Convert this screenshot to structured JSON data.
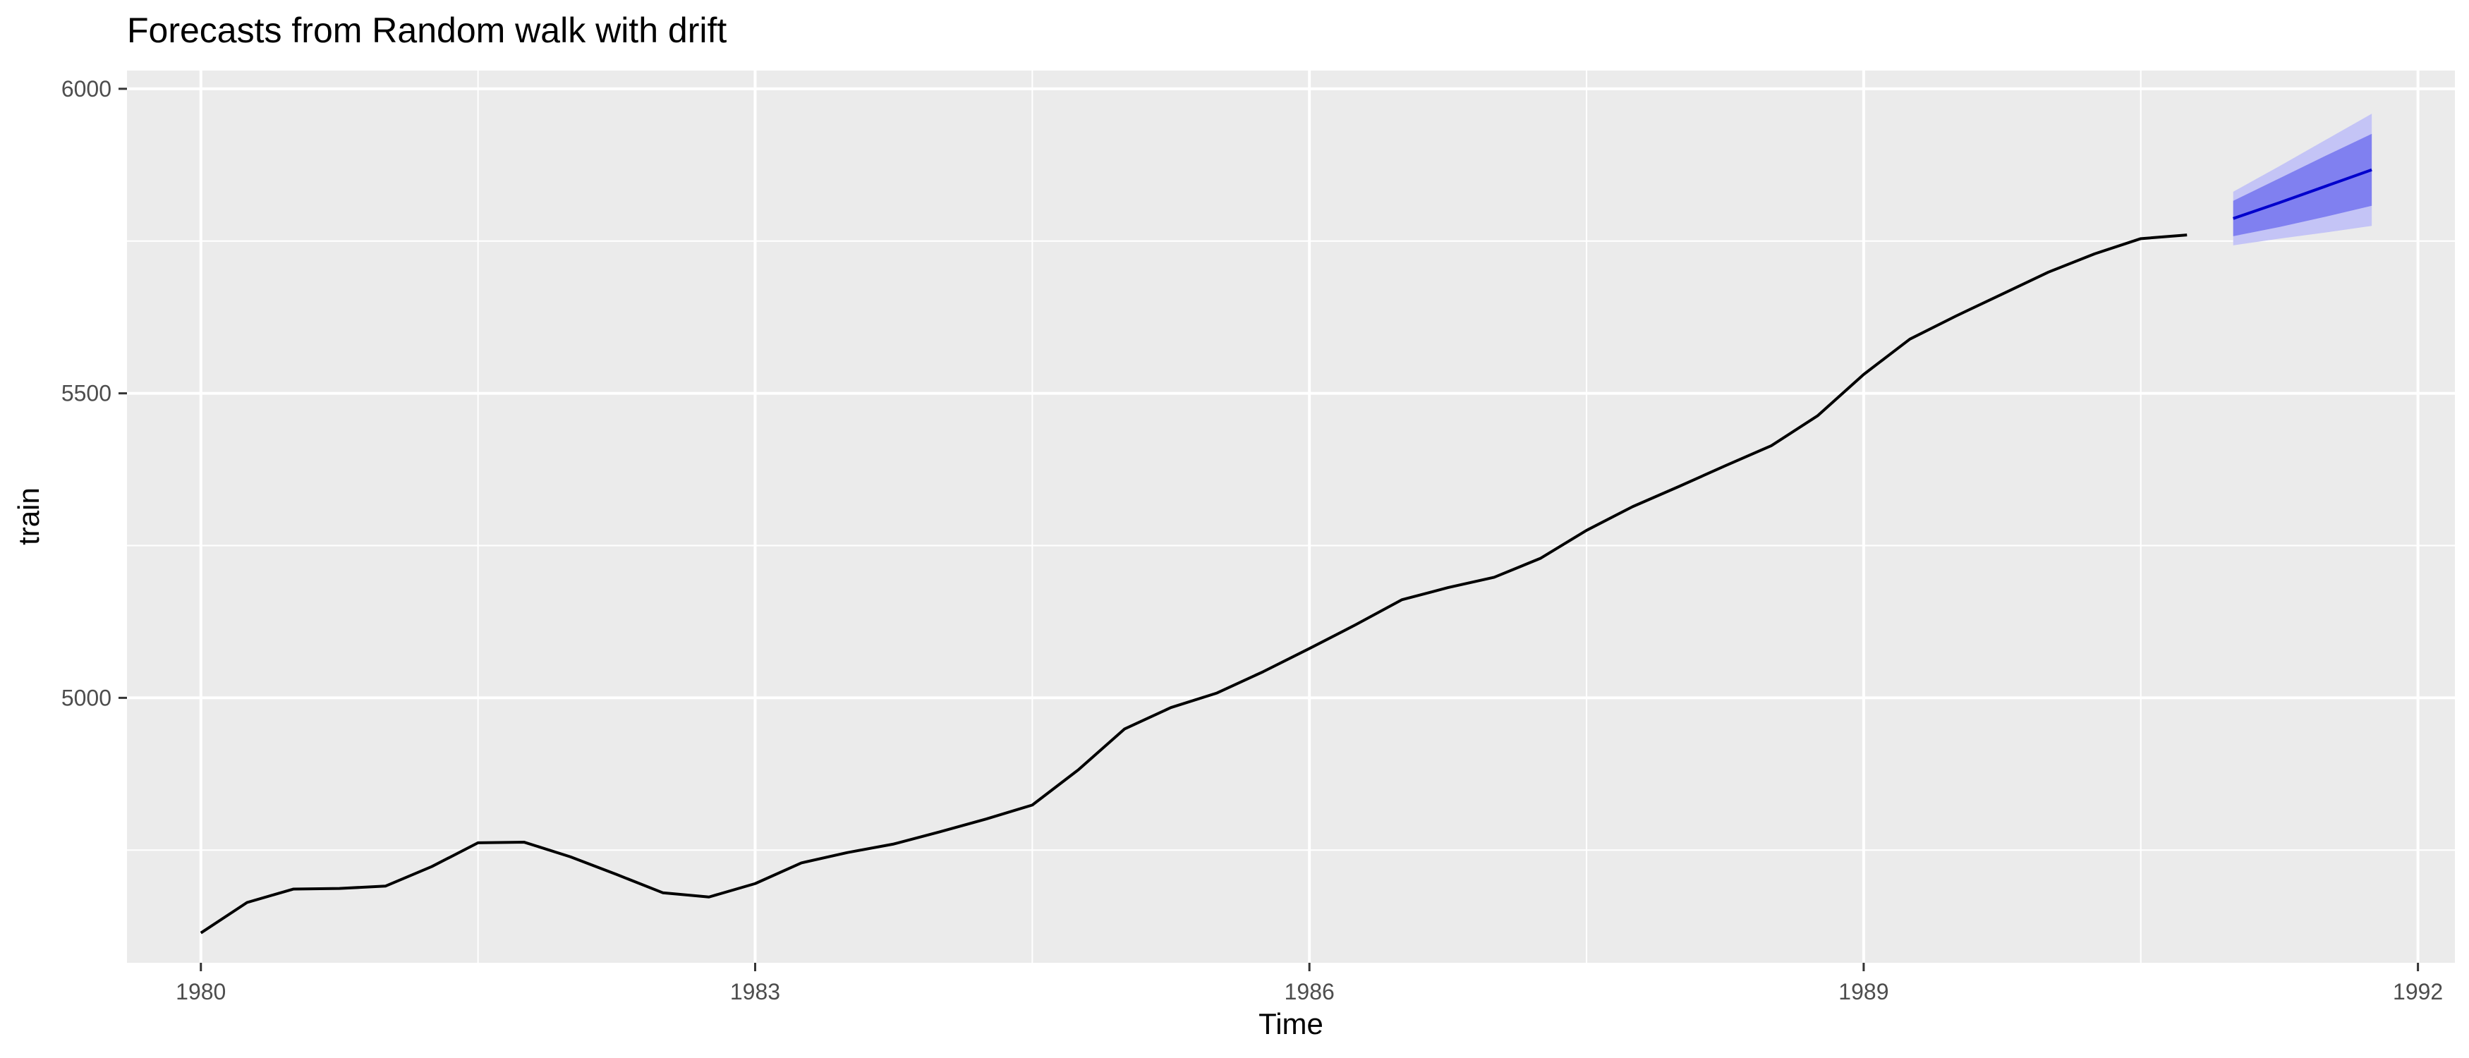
{
  "chart_data": {
    "type": "line",
    "title": "Forecasts from Random walk with drift",
    "xlabel": "Time",
    "ylabel": "train",
    "xlim": [
      1979.6,
      1992.2
    ],
    "ylim": [
      4565,
      6030
    ],
    "x_ticks": [
      1980,
      1983,
      1986,
      1989,
      1992
    ],
    "x_tick_labels": [
      "1980",
      "1983",
      "1986",
      "1989",
      "1992"
    ],
    "y_ticks": [
      5000,
      5500,
      6000
    ],
    "y_tick_labels": [
      "5000",
      "5500",
      "6000"
    ],
    "grid": true,
    "colors": {
      "panel": "#ebebeb",
      "history": "#000000",
      "forecast": "#0000cc",
      "band_80": "#8080f0",
      "band_95": "#c4c4f6"
    },
    "series": [
      {
        "role": "history",
        "x": [
          1980.0,
          1980.25,
          1980.5,
          1980.75,
          1981.0,
          1981.25,
          1981.5,
          1981.75,
          1982.0,
          1982.25,
          1982.5,
          1982.75,
          1983.0,
          1983.25,
          1983.5,
          1983.75,
          1984.0,
          1984.25,
          1984.5,
          1984.75,
          1985.0,
          1985.25,
          1985.5,
          1985.75,
          1986.0,
          1986.25,
          1986.5,
          1986.75,
          1987.0,
          1987.25,
          1987.5,
          1987.75,
          1988.0,
          1988.25,
          1988.5,
          1988.75,
          1989.0,
          1989.25,
          1989.5,
          1989.75,
          1990.0,
          1990.25,
          1990.5,
          1990.75
        ],
        "values": [
          4614,
          4664,
          4686,
          4687,
          4691,
          4723,
          4762,
          4763,
          4739,
          4710,
          4680,
          4673,
          4695,
          4729,
          4746,
          4760,
          4780,
          4801,
          4824,
          4882,
          4949,
          4984,
          5008,
          5043,
          5081,
          5120,
          5161,
          5181,
          5198,
          5229,
          5275,
          5314,
          5347,
          5381,
          5414,
          5463,
          5531,
          5589,
          5627,
          5663,
          5699,
          5729,
          5754,
          5760
        ]
      },
      {
        "role": "forecast",
        "x": [
          1991.0,
          1991.25,
          1991.5,
          1991.75
        ],
        "values": [
          5787,
          5813,
          5840,
          5867
        ],
        "lo80": [
          5758,
          5773,
          5790,
          5808
        ],
        "hi80": [
          5816,
          5853,
          5890,
          5926
        ],
        "lo95": [
          5743,
          5754,
          5764,
          5775
        ],
        "hi95": [
          5831,
          5873,
          5916,
          5959
        ]
      }
    ]
  }
}
